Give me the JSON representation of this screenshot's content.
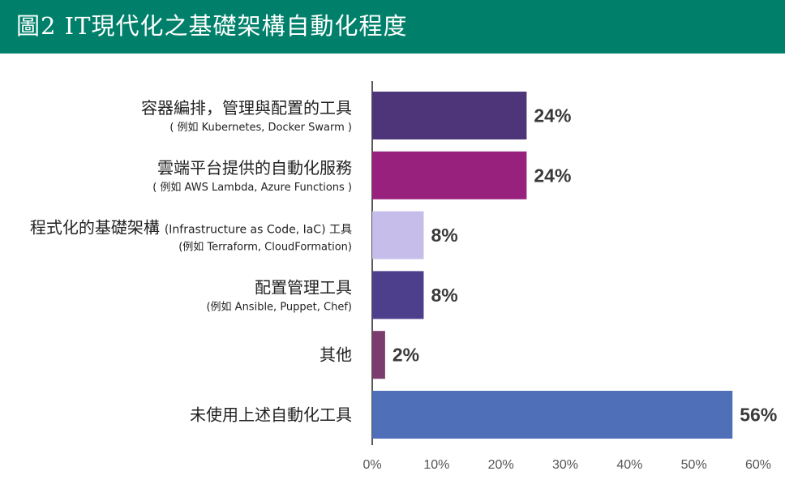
{
  "header": {
    "title": "圖2  IT現代化之基礎架構自動化程度"
  },
  "chart_data": {
    "type": "bar",
    "orientation": "horizontal",
    "title": "圖2  IT現代化之基礎架構自動化程度",
    "categories": [
      {
        "label": "容器編排，管理與配置的工具",
        "inline": "",
        "sub": "( 例如 Kubernetes, Docker Swarm )"
      },
      {
        "label": "雲端平台提供的自動化服務",
        "inline": "",
        "sub": "( 例如 AWS Lambda, Azure Functions )"
      },
      {
        "label": "程式化的基礎架構",
        "inline": "(Infrastructure as Code, IaC) 工具",
        "sub": "(例如 Terraform, CloudFormation)"
      },
      {
        "label": "配置管理工具",
        "inline": "",
        "sub": "(例如 Ansible, Puppet, Chef)"
      },
      {
        "label": "其他",
        "inline": "",
        "sub": ""
      },
      {
        "label": "未使用上述自動化工具",
        "inline": "",
        "sub": ""
      }
    ],
    "values": [
      24,
      24,
      8,
      8,
      2,
      56
    ],
    "value_labels": [
      "24%",
      "24%",
      "8%",
      "8%",
      "2%",
      "56%"
    ],
    "colors": [
      "#4e3478",
      "#98217e",
      "#c6bdea",
      "#4d3f8c",
      "#7b3d6e",
      "#4f6fb8"
    ],
    "xlim": [
      0,
      60
    ],
    "xticks": [
      0,
      10,
      20,
      30,
      40,
      50,
      60
    ],
    "xtick_labels": [
      "0%",
      "10%",
      "20%",
      "30%",
      "40%",
      "50%",
      "60%"
    ],
    "xlabel": "",
    "ylabel": "",
    "grid": false,
    "legend": "none"
  }
}
